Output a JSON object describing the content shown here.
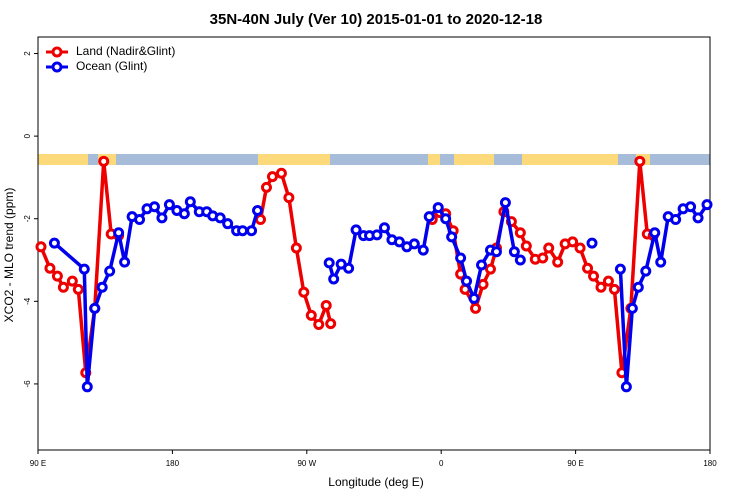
{
  "chart_data": {
    "type": "line",
    "title": "35N-40N July (Ver 10)   2015-01-01 to 2020-12-18",
    "x_label": "Longitude (deg E)",
    "y_label": "XCO2 - MLO trend (ppm)",
    "xlim": [
      90,
      540
    ],
    "ylim": [
      -7.6,
      2.4
    ],
    "xticks": [
      {
        "value": 90,
        "label": "90 E"
      },
      180,
      {
        "value": 270,
        "label": "90 W"
      },
      {
        "value": 360,
        "label": "0"
      },
      {
        "value": 450,
        "label": "90 E"
      },
      {
        "value": 540,
        "label": "180"
      }
    ],
    "yticks": [
      2,
      0,
      -2,
      -4,
      -6
    ],
    "legend": "top-left",
    "series": [
      {
        "name": "Land (Nadir&Glint)",
        "color": "#ee0000",
        "x": [
          92,
          98,
          103,
          107,
          113,
          117,
          122,
          128,
          134,
          139,
          144,
          null,
          239,
          243,
          247,
          253,
          258,
          263,
          268,
          273,
          278,
          283,
          286,
          null,
          354,
          359,
          363,
          368,
          373,
          376,
          383,
          388,
          393,
          397,
          402,
          407,
          413,
          417,
          423,
          428,
          432,
          438,
          443,
          448,
          453,
          458,
          462,
          467,
          472,
          476,
          481,
          487,
          493,
          498,
          502
        ],
        "values": [
          -2.68,
          -3.2,
          -3.39,
          -3.66,
          -3.51,
          -3.71,
          -5.73,
          -4.17,
          -0.61,
          -2.37,
          -2.41,
          null,
          -2.02,
          -1.24,
          -0.98,
          -0.9,
          -1.49,
          -2.71,
          -3.78,
          -4.34,
          -4.56,
          -4.1,
          -4.54,
          null,
          -2.02,
          -1.85,
          -1.88,
          -2.29,
          -3.34,
          -3.71,
          -4.17,
          -3.59,
          -3.22,
          -2.71,
          -1.83,
          -2.07,
          -2.34,
          -2.66,
          -2.98,
          -2.95,
          -2.71,
          -3.05,
          -2.61,
          -2.56,
          -2.71,
          -3.2,
          -3.39,
          -3.66,
          -3.51,
          -3.71,
          -5.73,
          -4.17,
          -0.61,
          -2.37,
          -2.41
        ]
      },
      {
        "name": "Ocean (Glint)",
        "color": "#0000ee",
        "x": [
          101,
          121,
          123,
          128,
          133,
          138,
          144,
          148,
          153,
          158,
          163,
          168,
          173,
          178,
          183,
          188,
          192,
          198,
          203,
          207,
          212,
          217,
          223,
          227,
          233,
          237,
          null,
          285,
          288,
          293,
          298,
          303,
          308,
          312,
          317,
          322,
          327,
          332,
          337,
          342,
          348,
          352,
          358,
          363,
          367,
          373,
          377,
          382,
          387,
          393,
          397,
          403,
          409,
          413,
          null,
          461,
          null,
          480,
          484,
          488,
          492,
          497,
          503,
          507,
          512,
          517,
          522,
          527,
          532,
          538
        ],
        "values": [
          -2.59,
          -3.22,
          -6.07,
          -4.17,
          -3.66,
          -3.27,
          -2.34,
          -3.05,
          -1.95,
          -2.02,
          -1.76,
          -1.71,
          -1.98,
          -1.66,
          -1.8,
          -1.88,
          -1.59,
          -1.83,
          -1.83,
          -1.93,
          -1.98,
          -2.12,
          -2.29,
          -2.29,
          -2.29,
          -1.8,
          null,
          -3.07,
          -3.46,
          -3.1,
          -3.2,
          -2.27,
          -2.41,
          -2.41,
          -2.39,
          -2.22,
          -2.51,
          -2.56,
          -2.68,
          -2.61,
          -2.76,
          -1.95,
          -1.73,
          -2.0,
          -2.44,
          -2.95,
          -3.51,
          -3.93,
          -3.12,
          -2.76,
          -2.8,
          -1.61,
          -2.8,
          -3.0,
          null,
          -2.59,
          null,
          -3.22,
          -6.07,
          -4.17,
          -3.66,
          -3.27,
          -2.34,
          -3.05,
          -1.95,
          -2.02,
          -1.76,
          -1.71,
          -1.98,
          -1.66
        ]
      }
    ]
  }
}
